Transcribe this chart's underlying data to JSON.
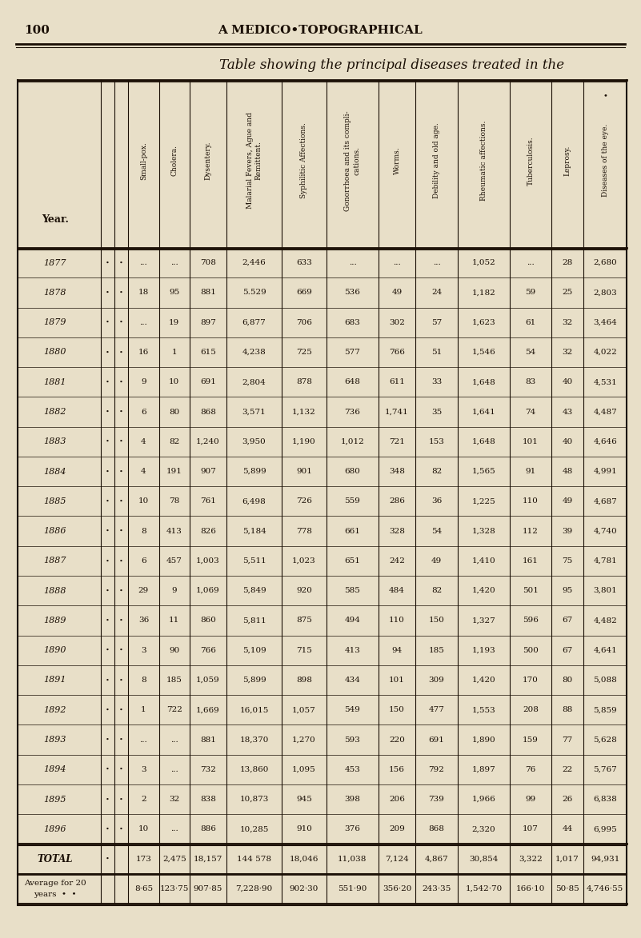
{
  "page_number": "100",
  "page_header": "A MEDICO•TOPOGRAPHICAL",
  "title": "Table showing the principal diseases treated in the",
  "bg_color": "#e8dfc8",
  "text_color": "#1a0f05",
  "rows": [
    [
      "1877",
      "•",
      "•",
      "...",
      "...",
      "708",
      "2,446",
      "633",
      "...",
      "...",
      "...",
      "1,052",
      "...",
      "28",
      "2,680"
    ],
    [
      "1878",
      "•",
      "•",
      "18",
      "95",
      "881",
      "5.529",
      "669",
      "536",
      "49",
      "24",
      "1,182",
      "59",
      "25",
      "2,803"
    ],
    [
      "1879",
      "•",
      "•",
      "...",
      "19",
      "897",
      "6,877",
      "706",
      "683",
      "302",
      "57",
      "1,623",
      "61",
      "32",
      "3,464"
    ],
    [
      "1880",
      "•",
      "•",
      "16",
      "1",
      "615",
      "4,238",
      "725",
      "577",
      "766",
      "51",
      "1,546",
      "54",
      "32",
      "4,022"
    ],
    [
      "1881",
      "•",
      "•",
      "9",
      "10",
      "691",
      "2,804",
      "878",
      "648",
      "611",
      "33",
      "1,648",
      "83",
      "40",
      "4,531"
    ],
    [
      "1882",
      "•",
      "•",
      "6",
      "80",
      "868",
      "3,571",
      "1,132",
      "736",
      "1,741",
      "35",
      "1,641",
      "74",
      "43",
      "4,487"
    ],
    [
      "1883",
      "•",
      "•",
      "4",
      "82",
      "1,240",
      "3,950",
      "1,190",
      "1,012",
      "721",
      "153",
      "1,648",
      "101",
      "40",
      "4,646"
    ],
    [
      "1884",
      "•",
      "•",
      "4",
      "191",
      "907",
      "5,899",
      "901",
      "680",
      "348",
      "82",
      "1,565",
      "91",
      "48",
      "4,991"
    ],
    [
      "1885",
      "•",
      "•",
      "10",
      "78",
      "761",
      "6,498",
      "726",
      "559",
      "286",
      "36",
      "1,225",
      "110",
      "49",
      "4,687"
    ],
    [
      "1886",
      "•",
      "•",
      "8",
      "413",
      "826",
      "5,184",
      "778",
      "661",
      "328",
      "54",
      "1,328",
      "112",
      "39",
      "4,740"
    ],
    [
      "1887",
      "•",
      "•",
      "6",
      "457",
      "1,003",
      "5,511",
      "1,023",
      "651",
      "242",
      "49",
      "1,410",
      "161",
      "75",
      "4,781"
    ],
    [
      "1888",
      "•",
      "•",
      "29",
      "9",
      "1,069",
      "5,849",
      "920",
      "585",
      "484",
      "82",
      "1,420",
      "501",
      "95",
      "3,801"
    ],
    [
      "1889",
      "•",
      "•",
      "36",
      "11",
      "860",
      "5,811",
      "875",
      "494",
      "110",
      "150",
      "1,327",
      "596",
      "67",
      "4,482"
    ],
    [
      "1890",
      "•",
      "•",
      "3",
      "90",
      "766",
      "5,109",
      "715",
      "413",
      "94",
      "185",
      "1,193",
      "500",
      "67",
      "4,641"
    ],
    [
      "1891",
      "•",
      "•",
      "8",
      "185",
      "1,059",
      "5,899",
      "898",
      "434",
      "101",
      "309",
      "1,420",
      "170",
      "80",
      "5,088"
    ],
    [
      "1892",
      "•",
      "•",
      "1",
      "722",
      "1,669",
      "16,015",
      "1,057",
      "549",
      "150",
      "477",
      "1,553",
      "208",
      "88",
      "5,859"
    ],
    [
      "1893",
      "•",
      "•",
      "...",
      "...",
      "881",
      "18,370",
      "1,270",
      "593",
      "220",
      "691",
      "1,890",
      "159",
      "77",
      "5,628"
    ],
    [
      "1894",
      "•",
      "•",
      "3",
      "...",
      "732",
      "13,860",
      "1,095",
      "453",
      "156",
      "792",
      "1,897",
      "76",
      "22",
      "5,767"
    ],
    [
      "1895",
      "•",
      "•",
      "2",
      "32",
      "838",
      "10,873",
      "945",
      "398",
      "206",
      "739",
      "1,966",
      "99",
      "26",
      "6,838"
    ],
    [
      "1896",
      "•",
      "•",
      "10",
      "...",
      "886",
      "10,285",
      "910",
      "376",
      "209",
      "868",
      "2,320",
      "107",
      "44",
      "6,995"
    ]
  ],
  "total_row": [
    "TOTAL",
    "•",
    "173",
    "2,475",
    "18,157",
    "144 578",
    "18,046",
    "11,038",
    "7,124",
    "4,867",
    "30,854",
    "3,322",
    "1,017",
    "94,931"
  ],
  "avg_label": [
    "Average for 20",
    "years  •  •"
  ],
  "avg_row": [
    "8·65",
    "123·75",
    "907·85",
    "7,228·90",
    "902·30",
    "551·90",
    "356·20",
    "243·35",
    "1,542·70",
    "166·10",
    "50·85",
    "4,746·55"
  ],
  "col_headers_rotated": [
    "Small-pox.",
    "Cholera.",
    "Dysentery.",
    "Malarial Fevers, Ague and\nRemittent.",
    "Syphilitic Affections.",
    "Gonorrhoea and its compli-\ncations.",
    "Worms.",
    "Debility and old age.",
    "Rheumatic affections.",
    "Tuberculosis.",
    "Leprosy.",
    "Diseases of the eye."
  ]
}
